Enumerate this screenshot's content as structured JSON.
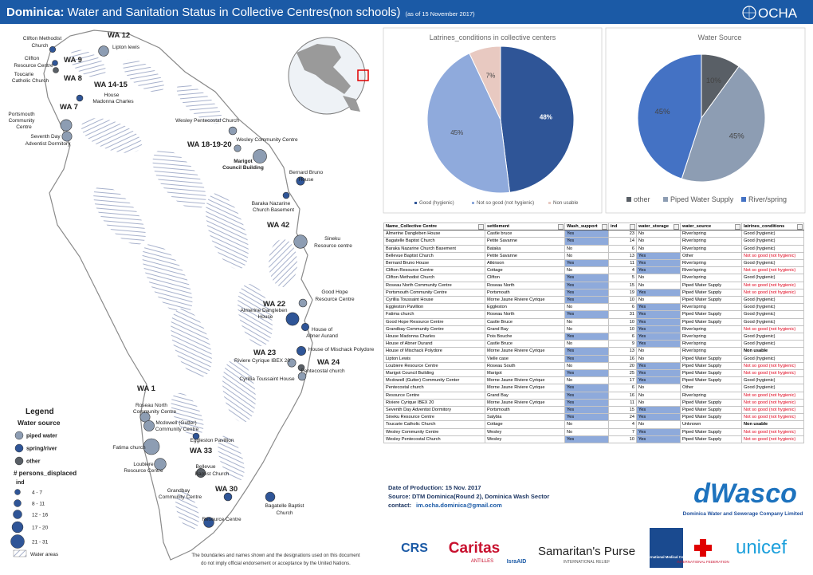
{
  "header": {
    "title_bold": "Dominica:",
    "title": "Water and Sanitation Status in Collective Centres(non schools)",
    "date": "(as of 15 November 2017)",
    "logo": "OCHA"
  },
  "map": {
    "area_labels": [
      "WA 12",
      "WA 9",
      "WA 8",
      "WA 14-15",
      "WA 7",
      "WA 18-19-20",
      "WA 42",
      "WA 22",
      "WA 23",
      "WA 24",
      "WA 1",
      "WA 33",
      "WA 30"
    ],
    "place_labels": [
      "Clifton Methodist",
      "Church",
      "Lipton lewis",
      "Clifton",
      "Resource Centre",
      "Toucarie",
      "Catholic Church",
      "House",
      "Madonna Charles",
      "Portsmouth",
      "Community",
      "Centre",
      "Wesley Pentecostal Church",
      "Seventh Day",
      "Adventist Dormitory",
      "Wesley Community Centre",
      "Marigot",
      "Council Building",
      "Bernard Bruno",
      "House",
      "Baraka Nazarine",
      "Church Basement",
      "Sineku",
      "Resource centre",
      "Good Hope",
      "Resource Centre",
      "Almerine Dangleben",
      "House",
      "House of",
      "Abner Aurand",
      "House of Mischack Polydore",
      "Riviere Cyrique IBEX 20",
      "Pentecostal church",
      "Cyrillia Toussaint House",
      "Roseau North",
      "Community Centre",
      "Mcdowell (Gutter)",
      "Community Centre",
      "Eggleston Pavillion",
      "Fatima church",
      "Loubiere",
      "Resource Centre",
      "Bellevue",
      "Baptist Church",
      "Grandbay",
      "Community Centre",
      "Bagatelle Baptist",
      "Church",
      "Resource Centre"
    ]
  },
  "legend": {
    "title": "Legend",
    "water_source_title": "Water source",
    "water_source": [
      "piped water",
      "spring/river",
      "other"
    ],
    "size_title": "# persons_displaced",
    "size_field": "ind",
    "size_bins": [
      "4 - 7",
      "8 - 11",
      "12 - 16",
      "17 - 20",
      "21 - 31"
    ],
    "water_areas": "Water areas"
  },
  "chart_data": [
    {
      "type": "pie",
      "title": "Latrines_conditions  in collective centers",
      "categories": [
        "Good (hygienic)",
        "Not so good (not hygienic)",
        "Non usable"
      ],
      "values": [
        48,
        45,
        7
      ],
      "value_labels": [
        "48%",
        "45%",
        "7%"
      ],
      "colors": [
        "#2f5597",
        "#8faadc",
        "#e8c9c1"
      ]
    },
    {
      "type": "pie",
      "title": "Water Source",
      "categories": [
        "other",
        "Piped Water Supply",
        "River/spring"
      ],
      "values": [
        10,
        45,
        45
      ],
      "value_labels": [
        "10%",
        "45%",
        "45%"
      ],
      "colors": [
        "#595f66",
        "#8d9db3",
        "#4472c4"
      ]
    }
  ],
  "table": {
    "columns": [
      "Name_Collective Centre",
      "settlement",
      "Wash_support",
      "ind",
      "water_storage",
      "water_source",
      "latrines_conditions"
    ],
    "rows": [
      [
        "Almerine Dangleben House",
        "Castle bruce",
        "Yes",
        23,
        "No",
        "River/spring",
        "Good (hygienic)"
      ],
      [
        "Bagatelle Baptist Church",
        "Petite Savanne",
        "Yes",
        14,
        "No",
        "River/spring",
        "Good (hygienic)"
      ],
      [
        "Baraka Nazarine Church Basement",
        "Bataka",
        "No",
        6,
        "No",
        "River/spring",
        "Good (hygienic)"
      ],
      [
        "Bellevue Baptist Church",
        "Petite Savanne",
        "No",
        13,
        "Yes",
        "Other",
        "Not so good (not hygienic)"
      ],
      [
        "Bernard Bruno House",
        "Atkinson",
        "Yes",
        11,
        "Yes",
        "River/spring",
        "Good (hygienic)"
      ],
      [
        "Clifton Resource Centre",
        "Cottage",
        "No",
        4,
        "Yes",
        "River/spring",
        "Not so good (not hygienic)"
      ],
      [
        "Clifton Methodist Church",
        "Clifton",
        "Yes",
        5,
        "No",
        "River/spring",
        "Good (hygienic)"
      ],
      [
        "Roseau North Community Centre",
        "Roseau North",
        "Yes",
        15,
        "No",
        "Piped Water Supply",
        "Not so good (not hygienic)"
      ],
      [
        "Portsmouth Community Centre",
        "Portsmouth",
        "Yes",
        19,
        "Yes",
        "Piped Water Supply",
        "Not so good (not hygienic)"
      ],
      [
        "Cyrillia Toussaint House",
        "Morne Jaune Riviere Cyrique",
        "Yes",
        10,
        "No",
        "Piped Water Supply",
        "Good (hygienic)"
      ],
      [
        "Eggleston Pavillion",
        "Eggleston",
        "No",
        6,
        "Yes",
        "River/spring",
        "Good (hygienic)"
      ],
      [
        "Fatima church",
        "Roseau North",
        "Yes",
        31,
        "Yes",
        "Piped Water Supply",
        "Good (hygienic)"
      ],
      [
        "Good Hope Resource Centre",
        "Castle Bruce",
        "No",
        10,
        "Yes",
        "Piped Water Supply",
        "Good (hygienic)"
      ],
      [
        "Grandbay Community Centre",
        "Grand Bay",
        "No",
        10,
        "Yes",
        "River/spring",
        "Not so good (not hygienic)"
      ],
      [
        "House Madonna Charles",
        "Pois Bouche",
        "Yes",
        6,
        "Yes",
        "River/spring",
        "Good (hygienic)"
      ],
      [
        "House of Abner Durand",
        "Castle Bruce",
        "No",
        9,
        "Yes",
        "River/spring",
        "Good (hygienic)"
      ],
      [
        "House of Mischack Polydore",
        "Morne Jaune Riviere Cyrique",
        "Yes",
        13,
        "No",
        "River/spring",
        "Non usable"
      ],
      [
        "Lipton Lewis",
        "Vielle case",
        "Yes",
        16,
        "No",
        "Piped Water Supply",
        "Good (hygienic)"
      ],
      [
        "Loubiere Resource Centre",
        "Roseau South",
        "No",
        20,
        "Yes",
        "Piped Water Supply",
        "Not so good (not hygienic)"
      ],
      [
        "Marigot Council Building",
        "Marigot",
        "Yes",
        25,
        "Yes",
        "Piped Water Supply",
        "Not so good (not hygienic)"
      ],
      [
        "Mcdowell (Gutter) Community Center",
        "Morne Jaune Riviere Cyrique",
        "No",
        17,
        "Yes",
        "Piped Water Supply",
        "Good (hygienic)"
      ],
      [
        "Pentecostal church",
        "Morne Jaune Riviere Cyrique",
        "Yes",
        6,
        "No",
        "Other",
        "Good (hygienic)"
      ],
      [
        "Resource Centre",
        "Grand Bay",
        "Yes",
        16,
        "No",
        "River/spring",
        "Not so good (not hygienic)"
      ],
      [
        "Riviere Cyrique IBEX 20",
        "Morne Jaune Riviere Cyrique",
        "Yes",
        11,
        "No",
        "Piped Water Supply",
        "Not so good (not hygienic)"
      ],
      [
        "Seventh Day Adventist Dormitory",
        "Portsmouth",
        "Yes",
        15,
        "Yes",
        "Piped Water Supply",
        "Not so good (not hygienic)"
      ],
      [
        "Sineku Resource Centre",
        "Salybia",
        "Yes",
        24,
        "Yes",
        "Piped Water Supply",
        "Not so good (not hygienic)"
      ],
      [
        "Toucarie Catholic Church",
        "Cottage",
        "No",
        4,
        "No",
        "Unknown",
        "Non usable"
      ],
      [
        "Wesley Community Centre",
        "Wesley",
        "No",
        7,
        "Yes",
        "Piped Water Supply",
        "Not so good (not hygienic)"
      ],
      [
        "Wesley Pentecostal Church",
        "Wesley",
        "Yes",
        10,
        "Yes",
        "Piped Water Supply",
        "Not so good (not hygienic)"
      ]
    ]
  },
  "production": {
    "date": "Date of Production: 15 Nov. 2017",
    "source": "Source: DTM Dominica(Round 2), Dominica Wash Sector",
    "contact_label": "contact:",
    "contact": "im.ocha.dominica@gmail.com"
  },
  "disclaimer": [
    "The boundaries and names shown and the designations used on this document",
    "do not imply official endorsement or acceptance by the United Nations."
  ],
  "partners": {
    "dwasco": "dWasco",
    "dwasco_name": "Dominica Water and Sewerage Company Limited",
    "crs": "CRS",
    "caritas": "Caritas",
    "caritas_sub": "ANTILLES",
    "israaid": "IsraAID",
    "samaritans": "Samaritan's Purse",
    "samaritans_sub": "INTERNATIONAL RELIEF",
    "imc": "International Medical Corps",
    "ifrc": "INTERNATIONAL FEDERATION",
    "unicef": "unicef"
  }
}
